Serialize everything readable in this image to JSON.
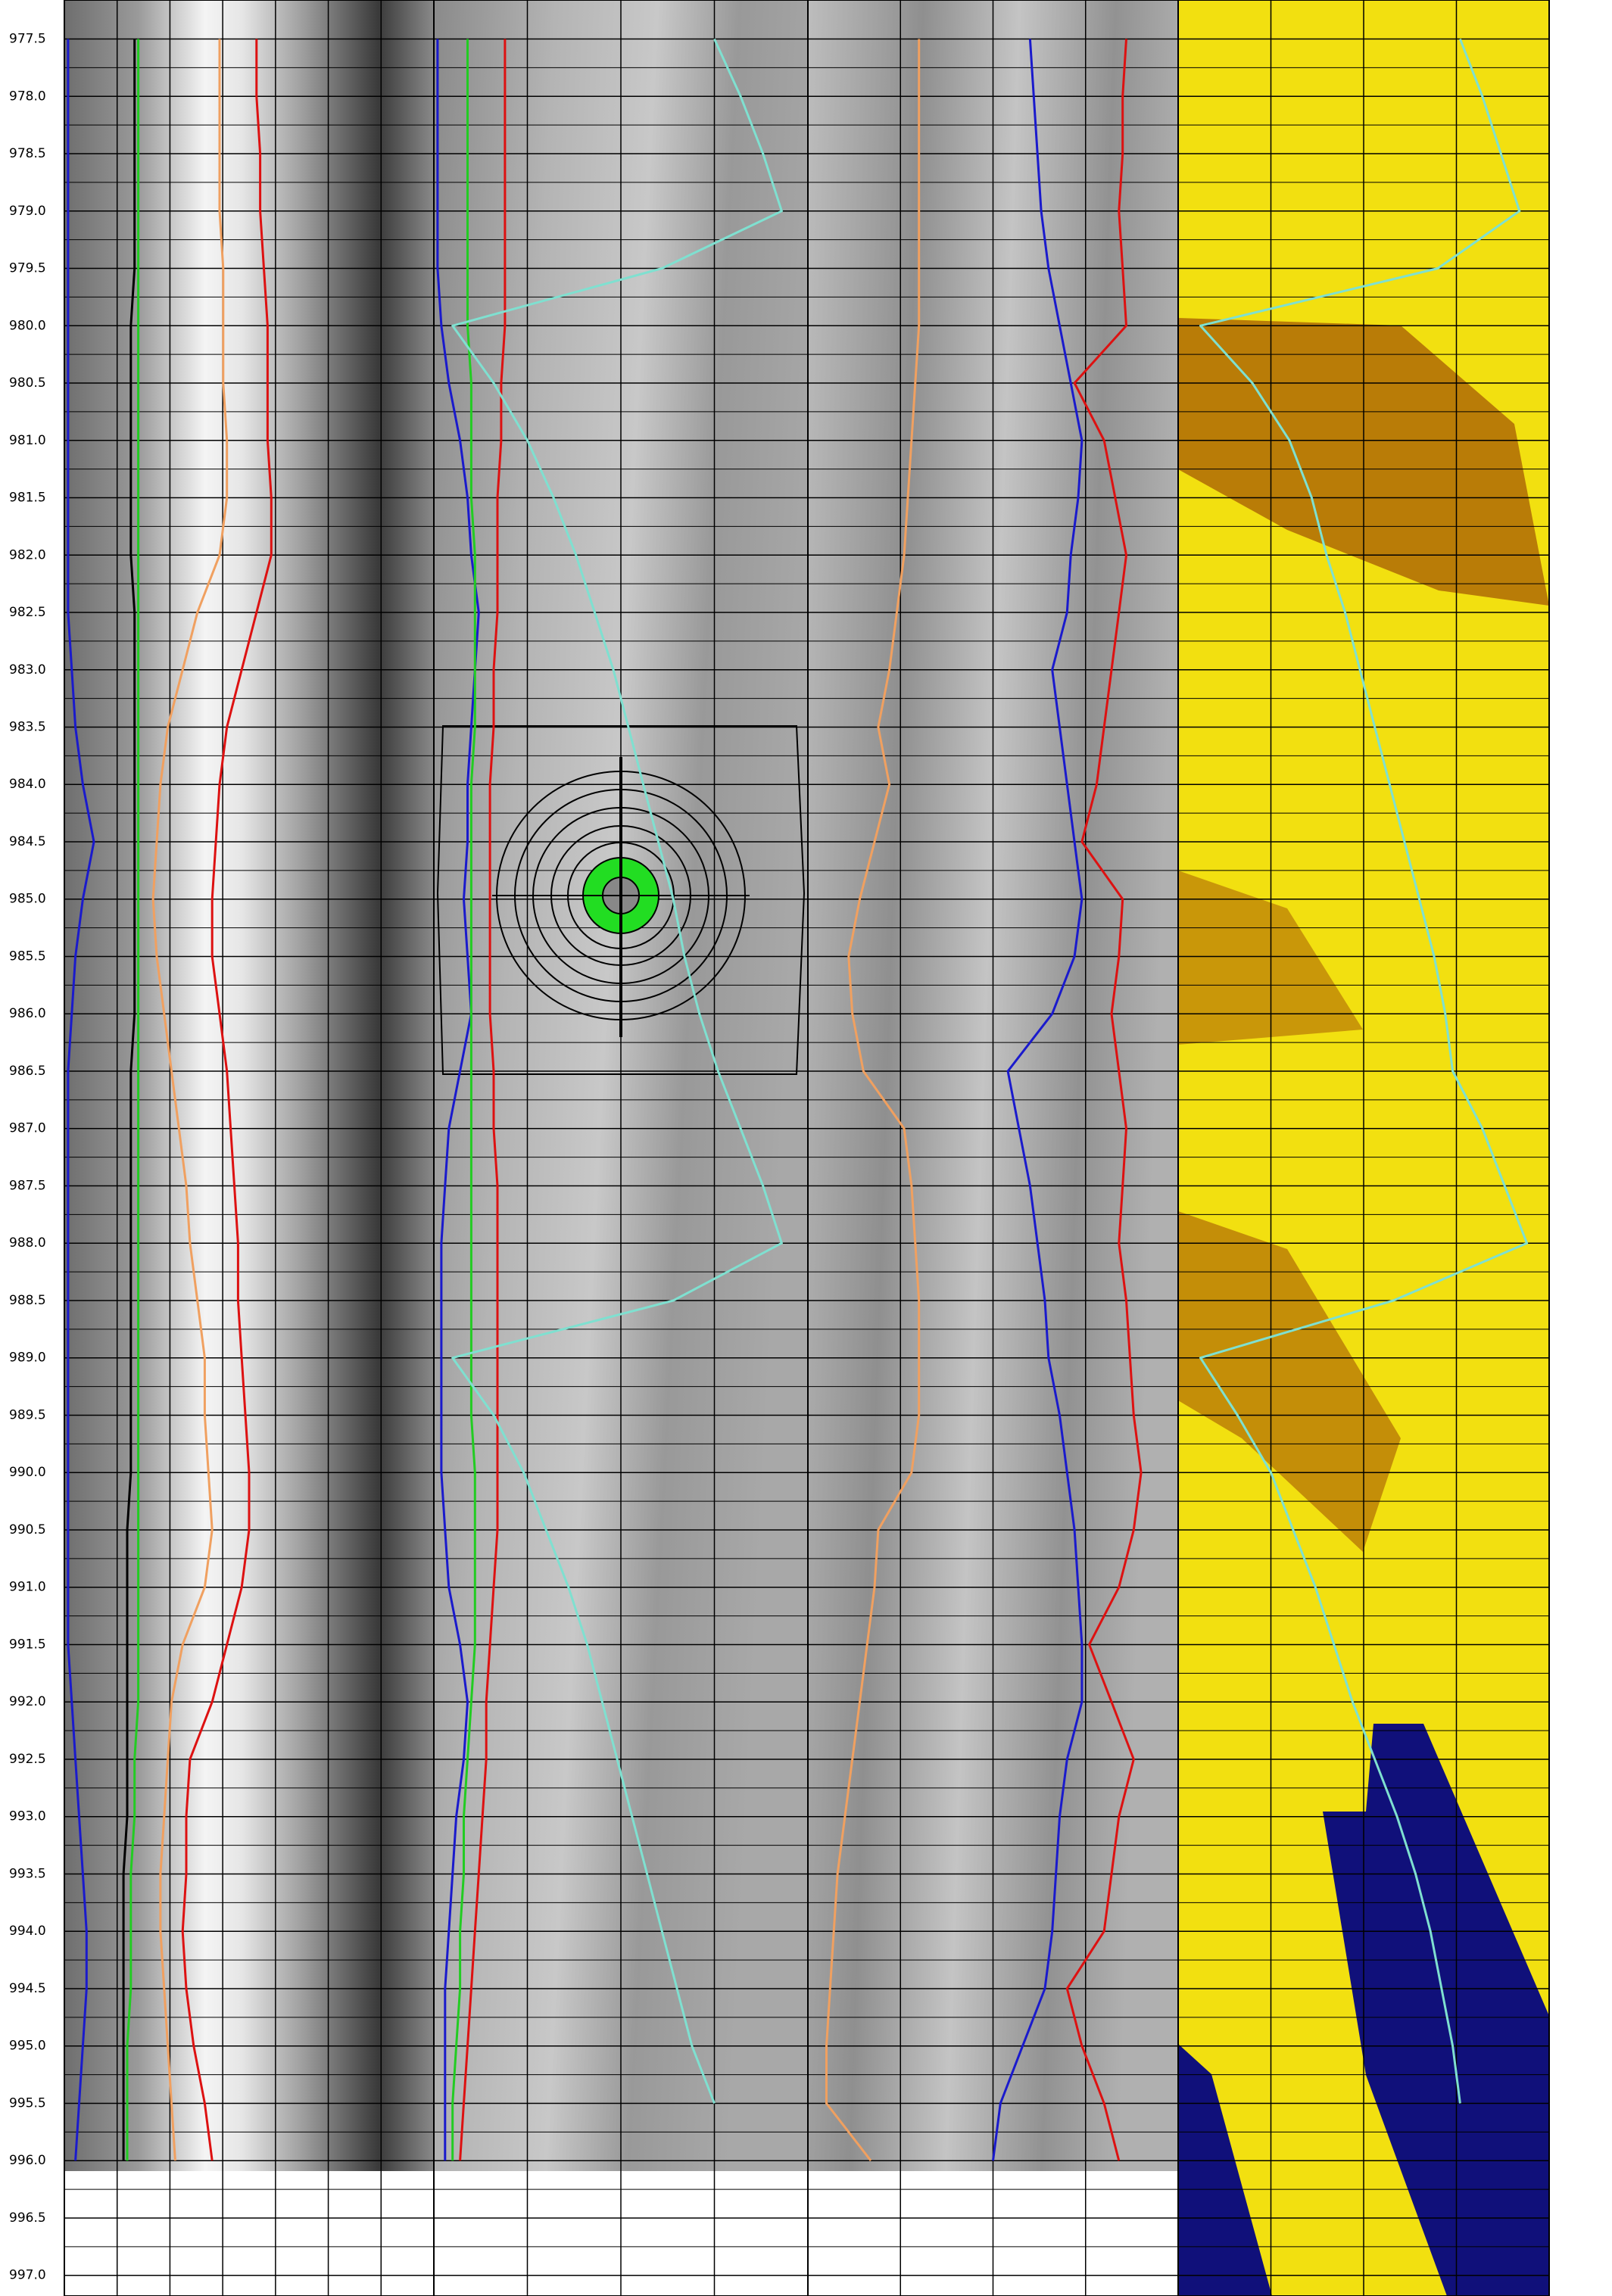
{
  "chart_data": {
    "type": "well-log",
    "ylim": [
      977.16,
      997.18
    ],
    "inverted": true,
    "grid": true,
    "yticks": [
      977.5,
      {
        "value": 978,
        "label": "978.0"
      },
      978.5,
      {
        "value": 979,
        "label": "979.0"
      },
      979.5,
      {
        "value": 980,
        "label": "980.0"
      },
      980.5,
      {
        "value": 981,
        "label": "981.0"
      },
      981.5,
      {
        "value": 982,
        "label": "982.0"
      },
      982.5,
      {
        "value": 983,
        "label": "983.0"
      },
      983.5,
      {
        "value": 984,
        "label": "984.0"
      },
      984.5,
      {
        "value": 985,
        "label": "985.0"
      },
      985.5,
      {
        "value": 986,
        "label": "986.0"
      },
      986.5,
      {
        "value": 987,
        "label": "987.0"
      },
      987.5,
      {
        "value": 988,
        "label": "988.0"
      },
      988.5,
      {
        "value": 989,
        "label": "989.0"
      },
      989.5,
      {
        "value": 990,
        "label": "990.0"
      },
      990.5,
      {
        "value": 991,
        "label": "991.0"
      },
      991.5,
      {
        "value": 992,
        "label": "992.0"
      },
      992.5,
      {
        "value": 993,
        "label": "993.0"
      },
      993.5,
      {
        "value": 994,
        "label": "994.0"
      },
      994.5,
      {
        "value": 995,
        "label": "995.0"
      },
      995.5,
      {
        "value": 996,
        "label": "996.0"
      },
      996.5,
      {
        "value": 997,
        "label": "997.0"
      }
    ],
    "x": [
      977.5,
      978,
      978.5,
      979,
      979.5,
      980,
      980.5,
      981,
      981.5,
      982,
      982.5,
      983,
      983.5,
      984,
      984.5,
      985,
      985.5,
      986,
      986.5,
      987,
      987.5,
      988,
      988.5,
      989,
      989.5,
      990,
      990.5,
      991,
      991.5,
      992,
      992.5,
      993,
      993.5,
      994,
      994.5,
      995,
      995.5,
      996
    ],
    "xlim": [
      0,
      100
    ],
    "series": [
      {
        "track": 1,
        "color": "#1a1acc",
        "values": [
          1,
          1,
          1,
          1,
          1,
          1,
          1,
          1,
          1,
          1,
          1,
          2,
          3,
          5,
          8,
          5,
          3,
          2,
          1,
          1,
          1,
          1,
          1,
          1,
          1,
          1,
          1,
          1,
          1,
          2,
          3,
          4,
          5,
          6,
          6,
          5,
          4,
          3
        ]
      },
      {
        "track": 1,
        "color": "#000000",
        "values": [
          19,
          19,
          19,
          19,
          19,
          18,
          18,
          18,
          18,
          18,
          19,
          19,
          19,
          19,
          19,
          19,
          19,
          19,
          18,
          18,
          18,
          18,
          18,
          18,
          18,
          18,
          17,
          17,
          17,
          17,
          17,
          17,
          16,
          16,
          16,
          16,
          16,
          16
        ]
      },
      {
        "track": 1,
        "color": "#22cc22",
        "values": [
          20,
          20,
          20,
          20,
          20,
          20,
          20,
          20,
          20,
          20,
          20,
          20,
          20,
          20,
          20,
          20,
          20,
          20,
          20,
          20,
          20,
          20,
          20,
          20,
          20,
          20,
          20,
          20,
          20,
          20,
          19,
          19,
          18,
          18,
          18,
          17,
          17,
          17
        ]
      },
      {
        "track": 1,
        "color": "#f0a060",
        "values": [
          42,
          42,
          42,
          42,
          43,
          43,
          43,
          44,
          44,
          42,
          36,
          32,
          28,
          26,
          25,
          24,
          25,
          27,
          29,
          31,
          33,
          34,
          36,
          38,
          38,
          39,
          40,
          38,
          32,
          29,
          28,
          27,
          26,
          26,
          27,
          28,
          29,
          30
        ]
      },
      {
        "track": 1,
        "color": "#dd1111",
        "values": [
          52,
          52,
          53,
          53,
          54,
          55,
          55,
          55,
          56,
          56,
          52,
          48,
          44,
          42,
          41,
          40,
          40,
          42,
          44,
          45,
          46,
          47,
          47,
          48,
          49,
          50,
          50,
          48,
          44,
          40,
          34,
          33,
          33,
          32,
          33,
          35,
          38,
          40
        ]
      },
      {
        "track": 2,
        "color": "#1a1acc",
        "values": [
          1,
          1,
          1,
          1,
          1,
          2,
          4,
          7,
          9,
          10,
          12,
          11,
          10,
          9,
          9,
          8,
          9,
          10,
          7,
          4,
          3,
          2,
          2,
          2,
          2,
          2,
          3,
          4,
          7,
          9,
          8,
          6,
          5,
          4,
          3,
          3,
          3,
          3
        ]
      },
      {
        "track": 2,
        "color": "#22cc22",
        "values": [
          9,
          9,
          9,
          9,
          9,
          9,
          10,
          10,
          10,
          11,
          11,
          11,
          11,
          10,
          10,
          10,
          10,
          10,
          10,
          10,
          10,
          10,
          10,
          10,
          10,
          11,
          11,
          11,
          11,
          10,
          9,
          8,
          8,
          7,
          7,
          6,
          5,
          5
        ]
      },
      {
        "track": 2,
        "color": "#dd1111",
        "values": [
          19,
          19,
          19,
          19,
          19,
          19,
          18,
          18,
          17,
          17,
          17,
          16,
          16,
          15,
          15,
          15,
          15,
          15,
          16,
          16,
          17,
          17,
          17,
          17,
          17,
          17,
          17,
          16,
          15,
          14,
          14,
          13,
          12,
          11,
          10,
          9,
          8,
          7
        ]
      },
      {
        "track": 2,
        "color": "#7fe0d0",
        "values": [
          75,
          82,
          88,
          93,
          61,
          5,
          16,
          25,
          32,
          38,
          43,
          48,
          52,
          56,
          60,
          64,
          67,
          71,
          76,
          82,
          88,
          93,
          64,
          5,
          16,
          24,
          30,
          36,
          41,
          45,
          49,
          53,
          57,
          61,
          65,
          69,
          75,
          null
        ]
      },
      {
        "track": 3,
        "color": "#f0a060",
        "values": [
          30,
          30,
          30,
          30,
          30,
          30,
          29,
          28,
          27,
          26,
          24,
          22,
          19,
          22,
          18,
          14,
          11,
          12,
          15,
          26,
          28,
          29,
          30,
          30,
          30,
          28,
          19,
          18,
          16,
          14,
          12,
          10,
          8,
          7,
          6,
          5,
          5,
          17
        ]
      },
      {
        "track": 3,
        "color": "#1a1acc",
        "values": [
          60,
          61,
          62,
          63,
          65,
          68,
          71,
          74,
          73,
          71,
          70,
          66,
          68,
          70,
          72,
          74,
          72,
          66,
          54,
          57,
          60,
          62,
          64,
          65,
          68,
          70,
          72,
          73,
          74,
          74,
          70,
          68,
          67,
          66,
          64,
          58,
          52,
          50
        ]
      },
      {
        "track": 3,
        "color": "#dd1111",
        "values": [
          86,
          85,
          85,
          84,
          85,
          86,
          72,
          80,
          83,
          86,
          84,
          82,
          80,
          78,
          74,
          85,
          84,
          82,
          84,
          86,
          85,
          84,
          86,
          87,
          88,
          90,
          88,
          84,
          76,
          82,
          88,
          84,
          82,
          80,
          70,
          74,
          80,
          84
        ]
      },
      {
        "track": 4,
        "color": "#7fe0d0",
        "values": [
          76,
          82,
          87,
          92,
          70,
          6,
          20,
          30,
          36,
          40,
          45,
          49,
          53,
          57,
          61,
          65,
          69,
          72,
          74,
          82,
          88,
          94,
          58,
          6,
          16,
          25,
          31,
          37,
          42,
          47,
          53,
          59,
          64,
          68,
          71,
          74,
          76,
          null
        ]
      }
    ]
  }
}
